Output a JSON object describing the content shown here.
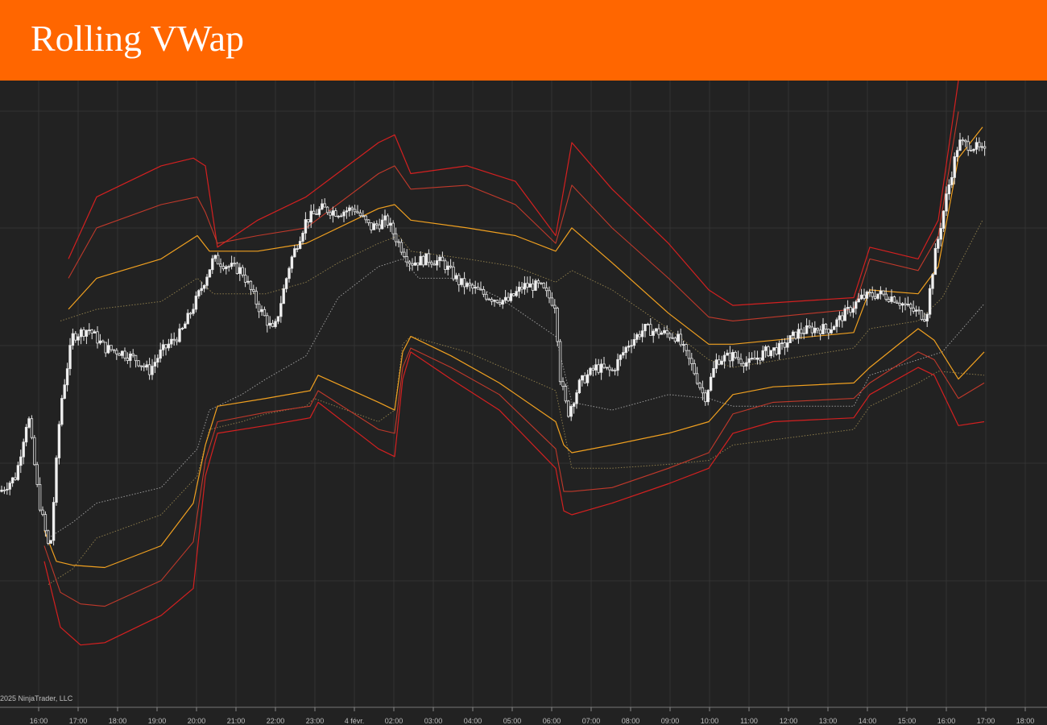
{
  "header": {
    "title": "Rolling VWap"
  },
  "chart_data": {
    "type": "line",
    "title": "Rolling VWap",
    "xlabel": "",
    "ylabel": "",
    "grid": true,
    "copyright": "2025 NinjaTrader, LLC",
    "x_ticks": [
      "16:00",
      "17:00",
      "18:00",
      "19:00",
      "20:00",
      "21:00",
      "22:00",
      "23:00",
      "4 févr.",
      "02:00",
      "03:00",
      "04:00",
      "05:00",
      "06:00",
      "07:00",
      "08:00",
      "09:00",
      "10:00",
      "11:00",
      "12:00",
      "13:00",
      "14:00",
      "15:00",
      "16:00",
      "17:00",
      "18:00"
    ],
    "y_scale_note": "no price axis visible; values on arbitrary 0-800 scale (0=bottom of plot, 800=top)",
    "ylim": [
      0,
      800
    ],
    "x_index_range": [
      0,
      1300
    ],
    "colors": {
      "background": "#222222",
      "grid": "#333333",
      "candles": "#e6e6e6",
      "outer_band": "#d42020",
      "mid_band": "#c0392b",
      "inner_band": "#f0a020",
      "dotted_band": "#8a7a4a",
      "dotted_center": "#9a9a9a",
      "header": "#ff6600"
    },
    "price_path": [
      [
        0,
        270
      ],
      [
        20,
        290
      ],
      [
        35,
        370
      ],
      [
        48,
        260
      ],
      [
        62,
        190
      ],
      [
        75,
        380
      ],
      [
        90,
        470
      ],
      [
        110,
        480
      ],
      [
        130,
        455
      ],
      [
        150,
        450
      ],
      [
        170,
        440
      ],
      [
        185,
        425
      ],
      [
        200,
        450
      ],
      [
        225,
        475
      ],
      [
        245,
        520
      ],
      [
        265,
        570
      ],
      [
        285,
        560
      ],
      [
        300,
        555
      ],
      [
        320,
        510
      ],
      [
        340,
        475
      ],
      [
        360,
        565
      ],
      [
        380,
        620
      ],
      [
        400,
        635
      ],
      [
        420,
        630
      ],
      [
        440,
        635
      ],
      [
        460,
        610
      ],
      [
        480,
        620
      ],
      [
        495,
        590
      ],
      [
        510,
        565
      ],
      [
        530,
        570
      ],
      [
        550,
        565
      ],
      [
        570,
        540
      ],
      [
        590,
        530
      ],
      [
        610,
        520
      ],
      [
        630,
        515
      ],
      [
        650,
        535
      ],
      [
        670,
        535
      ],
      [
        690,
        510
      ],
      [
        695,
        420
      ],
      [
        705,
        370
      ],
      [
        720,
        410
      ],
      [
        740,
        430
      ],
      [
        760,
        425
      ],
      [
        780,
        460
      ],
      [
        800,
        480
      ],
      [
        820,
        475
      ],
      [
        840,
        470
      ],
      [
        860,
        430
      ],
      [
        875,
        390
      ],
      [
        890,
        440
      ],
      [
        910,
        445
      ],
      [
        930,
        435
      ],
      [
        950,
        450
      ],
      [
        970,
        455
      ],
      [
        990,
        475
      ],
      [
        1010,
        480
      ],
      [
        1030,
        480
      ],
      [
        1050,
        500
      ],
      [
        1070,
        520
      ],
      [
        1090,
        525
      ],
      [
        1110,
        520
      ],
      [
        1130,
        505
      ],
      [
        1150,
        495
      ],
      [
        1160,
        570
      ],
      [
        1175,
        650
      ],
      [
        1190,
        720
      ],
      [
        1210,
        715
      ],
      [
        1225,
        705
      ]
    ],
    "series": [
      {
        "name": "",
        "style": "outer_upper",
        "values": [
          [
            85,
            570
          ],
          [
            120,
            650
          ],
          [
            200,
            690
          ],
          [
            240,
            700
          ],
          [
            255,
            690
          ],
          [
            270,
            585
          ],
          [
            320,
            620
          ],
          [
            380,
            650
          ],
          [
            470,
            720
          ],
          [
            490,
            730
          ],
          [
            510,
            680
          ],
          [
            580,
            690
          ],
          [
            640,
            670
          ],
          [
            690,
            600
          ],
          [
            710,
            720
          ],
          [
            760,
            660
          ],
          [
            830,
            590
          ],
          [
            880,
            530
          ],
          [
            910,
            510
          ],
          [
            1060,
            520
          ],
          [
            1080,
            585
          ],
          [
            1140,
            570
          ],
          [
            1165,
            620
          ],
          [
            1190,
            800
          ]
        ]
      },
      {
        "name": "",
        "style": "mid_upper",
        "values": [
          [
            85,
            545
          ],
          [
            120,
            610
          ],
          [
            200,
            640
          ],
          [
            245,
            650
          ],
          [
            255,
            630
          ],
          [
            270,
            590
          ],
          [
            320,
            600
          ],
          [
            380,
            610
          ],
          [
            470,
            680
          ],
          [
            490,
            690
          ],
          [
            510,
            660
          ],
          [
            580,
            665
          ],
          [
            640,
            640
          ],
          [
            690,
            590
          ],
          [
            710,
            665
          ],
          [
            760,
            610
          ],
          [
            830,
            545
          ],
          [
            880,
            495
          ],
          [
            910,
            490
          ],
          [
            1060,
            505
          ],
          [
            1080,
            570
          ],
          [
            1140,
            555
          ],
          [
            1165,
            600
          ],
          [
            1190,
            760
          ]
        ]
      },
      {
        "name": "",
        "style": "inner_upper",
        "values": [
          [
            85,
            505
          ],
          [
            120,
            545
          ],
          [
            200,
            570
          ],
          [
            245,
            600
          ],
          [
            260,
            580
          ],
          [
            270,
            580
          ],
          [
            320,
            580
          ],
          [
            380,
            590
          ],
          [
            470,
            635
          ],
          [
            490,
            640
          ],
          [
            510,
            620
          ],
          [
            580,
            610
          ],
          [
            640,
            600
          ],
          [
            690,
            580
          ],
          [
            710,
            610
          ],
          [
            760,
            565
          ],
          [
            830,
            500
          ],
          [
            880,
            460
          ],
          [
            910,
            460
          ],
          [
            1060,
            475
          ],
          [
            1080,
            530
          ],
          [
            1140,
            525
          ],
          [
            1165,
            560
          ],
          [
            1190,
            700
          ],
          [
            1220,
            740
          ]
        ]
      },
      {
        "name": "",
        "style": "dotted_upper",
        "values": [
          [
            75,
            490
          ],
          [
            120,
            505
          ],
          [
            200,
            515
          ],
          [
            245,
            545
          ],
          [
            265,
            525
          ],
          [
            330,
            525
          ],
          [
            380,
            540
          ],
          [
            420,
            565
          ],
          [
            470,
            590
          ],
          [
            495,
            600
          ],
          [
            510,
            580
          ],
          [
            580,
            570
          ],
          [
            640,
            560
          ],
          [
            690,
            540
          ],
          [
            710,
            555
          ],
          [
            760,
            530
          ],
          [
            830,
            480
          ],
          [
            880,
            440
          ],
          [
            910,
            430
          ],
          [
            1060,
            455
          ],
          [
            1080,
            480
          ],
          [
            1140,
            490
          ],
          [
            1170,
            520
          ],
          [
            1220,
            620
          ]
        ]
      },
      {
        "name": "",
        "style": "dotted_center",
        "values": [
          [
            60,
            210
          ],
          [
            90,
            230
          ],
          [
            120,
            255
          ],
          [
            200,
            275
          ],
          [
            245,
            325
          ],
          [
            260,
            375
          ],
          [
            300,
            395
          ],
          [
            330,
            415
          ],
          [
            380,
            445
          ],
          [
            420,
            520
          ],
          [
            470,
            560
          ],
          [
            500,
            570
          ],
          [
            520,
            545
          ],
          [
            570,
            545
          ],
          [
            620,
            520
          ],
          [
            690,
            470
          ],
          [
            710,
            385
          ],
          [
            760,
            375
          ],
          [
            830,
            395
          ],
          [
            880,
            390
          ],
          [
            910,
            380
          ],
          [
            1060,
            380
          ],
          [
            1080,
            420
          ],
          [
            1140,
            440
          ],
          [
            1170,
            450
          ],
          [
            1222,
            512
          ]
        ]
      },
      {
        "name": "",
        "style": "dotted_lower",
        "values": [
          [
            60,
            150
          ],
          [
            90,
            170
          ],
          [
            120,
            210
          ],
          [
            200,
            240
          ],
          [
            245,
            290
          ],
          [
            260,
            350
          ],
          [
            300,
            360
          ],
          [
            330,
            370
          ],
          [
            380,
            380
          ],
          [
            390,
            390
          ],
          [
            470,
            360
          ],
          [
            490,
            375
          ],
          [
            500,
            460
          ],
          [
            510,
            470
          ],
          [
            580,
            450
          ],
          [
            690,
            400
          ],
          [
            710,
            300
          ],
          [
            760,
            300
          ],
          [
            830,
            305
          ],
          [
            880,
            310
          ],
          [
            910,
            330
          ],
          [
            1060,
            350
          ],
          [
            1080,
            380
          ],
          [
            1140,
            410
          ],
          [
            1165,
            425
          ],
          [
            1222,
            420
          ]
        ]
      },
      {
        "name": "",
        "style": "inner_lower",
        "values": [
          [
            55,
            220
          ],
          [
            70,
            180
          ],
          [
            90,
            175
          ],
          [
            130,
            172
          ],
          [
            200,
            200
          ],
          [
            240,
            255
          ],
          [
            255,
            330
          ],
          [
            270,
            380
          ],
          [
            330,
            390
          ],
          [
            385,
            400
          ],
          [
            395,
            420
          ],
          [
            470,
            385
          ],
          [
            490,
            375
          ],
          [
            500,
            450
          ],
          [
            510,
            470
          ],
          [
            560,
            445
          ],
          [
            620,
            410
          ],
          [
            690,
            360
          ],
          [
            700,
            330
          ],
          [
            710,
            320
          ],
          [
            760,
            330
          ],
          [
            830,
            345
          ],
          [
            880,
            360
          ],
          [
            910,
            395
          ],
          [
            960,
            405
          ],
          [
            1060,
            410
          ],
          [
            1080,
            430
          ],
          [
            1140,
            480
          ],
          [
            1160,
            465
          ],
          [
            1190,
            415
          ],
          [
            1222,
            450
          ]
        ]
      },
      {
        "name": "",
        "style": "mid_lower",
        "values": [
          [
            55,
            200
          ],
          [
            75,
            140
          ],
          [
            100,
            125
          ],
          [
            130,
            122
          ],
          [
            200,
            155
          ],
          [
            240,
            205
          ],
          [
            255,
            310
          ],
          [
            270,
            360
          ],
          [
            330,
            372
          ],
          [
            385,
            380
          ],
          [
            395,
            400
          ],
          [
            470,
            350
          ],
          [
            490,
            345
          ],
          [
            500,
            430
          ],
          [
            510,
            455
          ],
          [
            560,
            430
          ],
          [
            620,
            395
          ],
          [
            690,
            325
          ],
          [
            700,
            270
          ],
          [
            710,
            270
          ],
          [
            760,
            275
          ],
          [
            830,
            300
          ],
          [
            880,
            320
          ],
          [
            910,
            370
          ],
          [
            960,
            385
          ],
          [
            1060,
            390
          ],
          [
            1080,
            410
          ],
          [
            1140,
            450
          ],
          [
            1160,
            440
          ],
          [
            1190,
            390
          ],
          [
            1222,
            410
          ]
        ]
      },
      {
        "name": "",
        "style": "outer_lower",
        "values": [
          [
            55,
            180
          ],
          [
            75,
            95
          ],
          [
            100,
            72
          ],
          [
            130,
            75
          ],
          [
            200,
            110
          ],
          [
            240,
            145
          ],
          [
            255,
            290
          ],
          [
            270,
            345
          ],
          [
            330,
            355
          ],
          [
            385,
            365
          ],
          [
            395,
            385
          ],
          [
            470,
            325
          ],
          [
            490,
            315
          ],
          [
            500,
            415
          ],
          [
            510,
            450
          ],
          [
            560,
            415
          ],
          [
            620,
            375
          ],
          [
            690,
            300
          ],
          [
            700,
            245
          ],
          [
            710,
            240
          ],
          [
            760,
            255
          ],
          [
            830,
            280
          ],
          [
            880,
            300
          ],
          [
            910,
            345
          ],
          [
            960,
            360
          ],
          [
            1060,
            365
          ],
          [
            1080,
            395
          ],
          [
            1140,
            430
          ],
          [
            1160,
            420
          ],
          [
            1190,
            355
          ],
          [
            1222,
            360
          ]
        ]
      }
    ]
  }
}
